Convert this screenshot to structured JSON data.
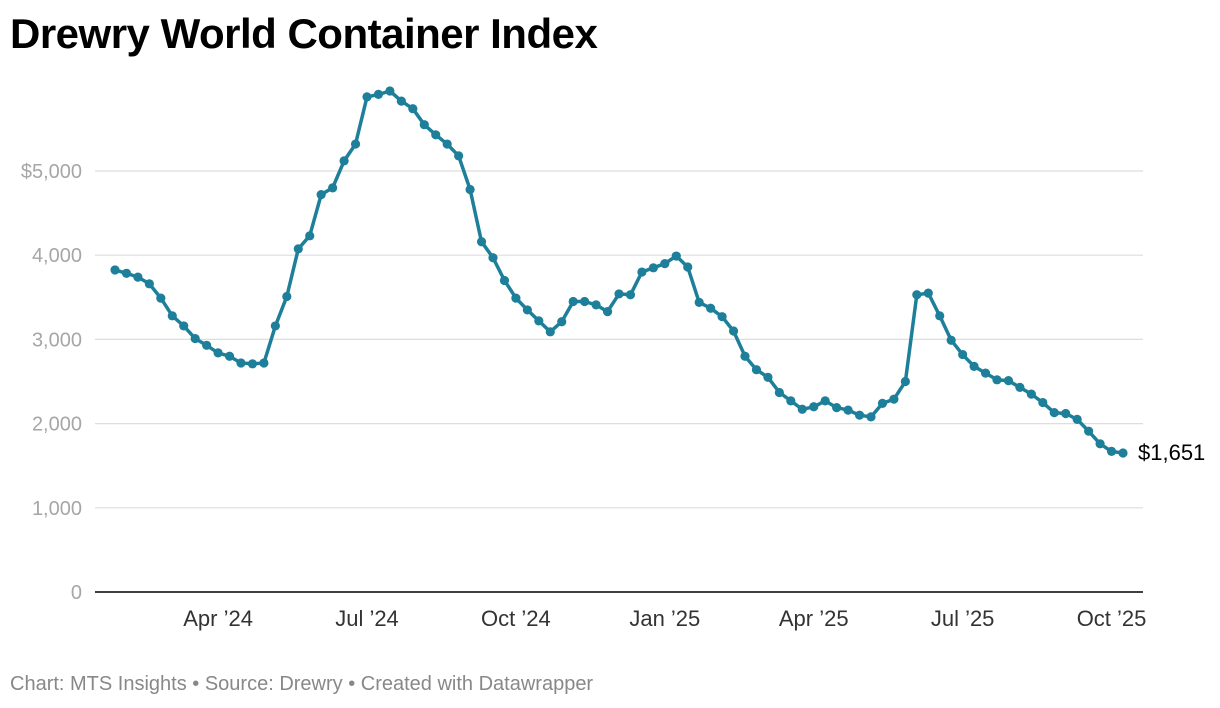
{
  "chart_data": {
    "type": "line",
    "title": "Drewry World Container Index",
    "xlabel": "",
    "ylabel": "",
    "ylim": [
      0,
      6000
    ],
    "grid": true,
    "y_ticks": [
      {
        "value": 0,
        "label": "0"
      },
      {
        "value": 1000,
        "label": "1,000"
      },
      {
        "value": 2000,
        "label": "2,000"
      },
      {
        "value": 3000,
        "label": "3,000"
      },
      {
        "value": 4000,
        "label": "4,000"
      },
      {
        "value": 5000,
        "label": "$5,000"
      }
    ],
    "x_ticks": [
      {
        "index": 9,
        "label": "Apr  24"
      },
      {
        "index": 22,
        "label": "Jul  24"
      },
      {
        "index": 35,
        "label": "Oct  24"
      },
      {
        "index": 48,
        "label": "Jan  25"
      },
      {
        "index": 61,
        "label": "Apr  25"
      },
      {
        "index": 74,
        "label": "Jul  25"
      },
      {
        "index": 87,
        "label": "Oct  25"
      }
    ],
    "series": [
      {
        "name": "Drewry World Container Index",
        "color": "#1d7f99",
        "values": [
          3825,
          3785,
          3740,
          3660,
          3490,
          3280,
          3160,
          3010,
          2930,
          2840,
          2800,
          2720,
          2710,
          2720,
          3160,
          3510,
          4075,
          4230,
          4720,
          4800,
          5120,
          5320,
          5880,
          5910,
          5950,
          5830,
          5740,
          5550,
          5430,
          5320,
          5180,
          4780,
          4160,
          3970,
          3700,
          3490,
          3350,
          3220,
          3090,
          3210,
          3450,
          3450,
          3410,
          3330,
          3540,
          3530,
          3800,
          3850,
          3900,
          3990,
          3860,
          3440,
          3370,
          3270,
          3100,
          2800,
          2640,
          2550,
          2370,
          2270,
          2170,
          2200,
          2270,
          2190,
          2160,
          2100,
          2080,
          2240,
          2290,
          2500,
          3530,
          3550,
          3280,
          2990,
          2820,
          2680,
          2600,
          2520,
          2510,
          2430,
          2350,
          2250,
          2130,
          2120,
          2050,
          1910,
          1760,
          1670,
          1651
        ]
      }
    ],
    "end_label": "$1,651"
  },
  "footer": {
    "text": "Chart: MTS Insights • Source: Drewry • Created with Datawrapper"
  }
}
